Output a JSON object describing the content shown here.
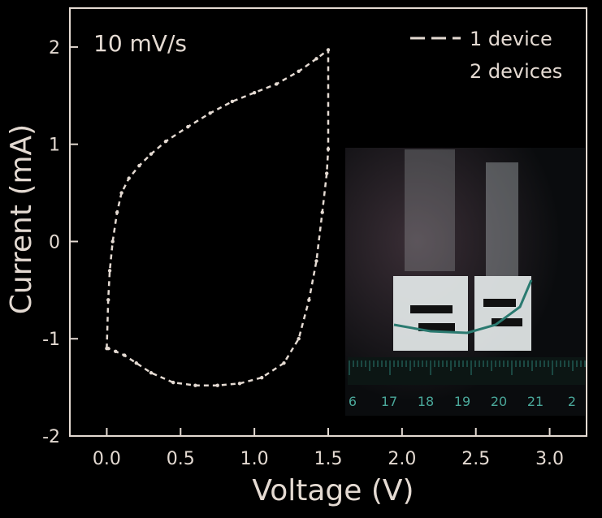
{
  "chart_data": {
    "type": "line",
    "annotation": "10 mV/s",
    "xlabel": "Voltage (V)",
    "ylabel": "Current (mA)",
    "xlim": [
      -0.25,
      3.25
    ],
    "ylim": [
      -2,
      2.4
    ],
    "x_ticks": [
      "0.0",
      "0.5",
      "1.0",
      "1.5",
      "2.0",
      "2.5",
      "3.0"
    ],
    "x_tick_values": [
      0,
      0.5,
      1.0,
      1.5,
      2.0,
      2.5,
      3.0
    ],
    "y_ticks": [
      "2",
      "1",
      "0",
      "-1",
      "-2"
    ],
    "y_tick_values": [
      2,
      1,
      0,
      -1,
      -2
    ],
    "legend_position": "top-right",
    "colors": {
      "background": "#000000",
      "foreground": "#e4dad2",
      "inset_teal": "#2a7a70"
    },
    "series": [
      {
        "name": "1 device",
        "style": "dashed",
        "x": [
          0.0,
          0.01,
          0.02,
          0.04,
          0.07,
          0.1,
          0.15,
          0.22,
          0.3,
          0.4,
          0.55,
          0.7,
          0.85,
          1.0,
          1.15,
          1.3,
          1.42,
          1.5,
          1.5,
          1.49,
          1.46,
          1.42,
          1.37,
          1.3,
          1.2,
          1.05,
          0.9,
          0.75,
          0.6,
          0.45,
          0.3,
          0.2,
          0.12,
          0.06,
          0.01
        ],
        "y": [
          -1.1,
          -0.6,
          -0.3,
          0.0,
          0.3,
          0.5,
          0.65,
          0.78,
          0.9,
          1.03,
          1.18,
          1.32,
          1.44,
          1.53,
          1.62,
          1.75,
          1.88,
          1.97,
          0.95,
          0.7,
          0.3,
          -0.2,
          -0.6,
          -1.0,
          -1.25,
          -1.4,
          -1.46,
          -1.48,
          -1.48,
          -1.45,
          -1.35,
          -1.25,
          -1.17,
          -1.13,
          -1.1
        ]
      },
      {
        "name": "2 devices",
        "style": "solid",
        "x": [],
        "y": []
      }
    ]
  },
  "inset": {
    "ruler_labels": [
      "6",
      "17",
      "18",
      "19",
      "20",
      "21",
      "2"
    ]
  }
}
